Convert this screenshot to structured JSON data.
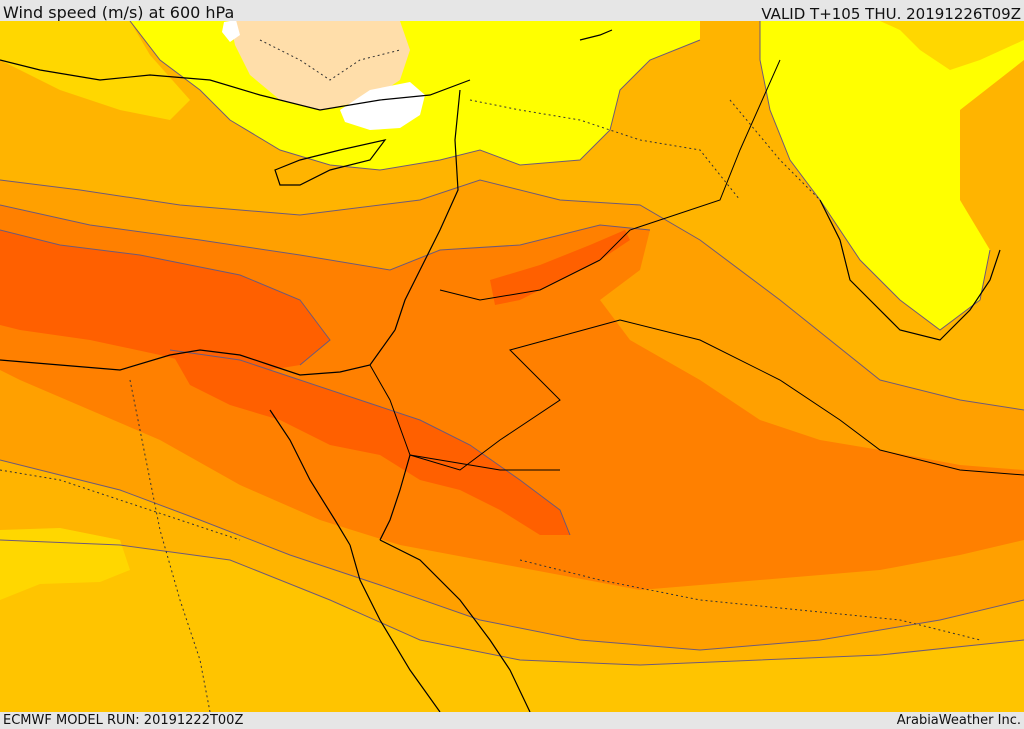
{
  "header": {
    "title": "Wind speed (m/s) at 600 hPa",
    "valid_time": "VALID T+105 THU. 20191226T09Z"
  },
  "footer": {
    "model_run": "ECMWF MODEL RUN: 20191222T00Z",
    "provider": "ArabiaWeather Inc."
  },
  "palette": {
    "band_lightest": "#ffdeaa",
    "band_white": "#ffffff",
    "band_yellow": "#ffff00",
    "band_gold": "#ffd700",
    "band_amber": "#ffb400",
    "band_orange": "#ffa000",
    "band_deep_orange": "#ff8000",
    "band_red_orange": "#ff6000",
    "contour_line": "#6e5a78",
    "coastline": "#000000",
    "border_dotted": "#333333"
  }
}
